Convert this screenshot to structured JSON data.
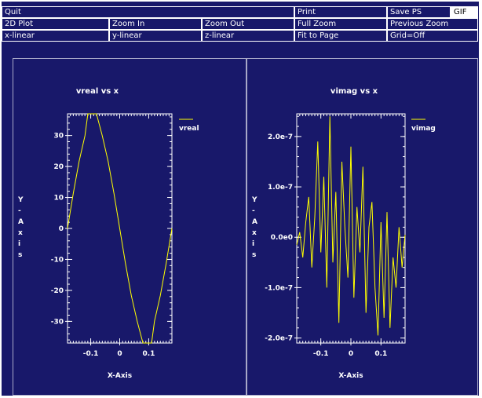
{
  "toolbar": {
    "row1": [
      "Quit",
      "Print",
      "Save PS",
      "GIF"
    ],
    "row2": [
      "2D Plot",
      "Zoom In",
      "Zoom Out",
      "Full Zoom",
      "Previous Zoom"
    ],
    "row3": [
      "x-linear",
      "y-linear",
      "z-linear",
      "Fit to Page",
      "Grid=Off"
    ]
  },
  "colors": {
    "background": "#18186a",
    "text": "#ffffff",
    "trace": "#ffff00"
  },
  "plots": [
    {
      "title": "vreal vs x",
      "legend": "vreal",
      "xlabel": "X-Axis",
      "ylabel": [
        "Y",
        "-",
        "A",
        "x",
        "i",
        "s"
      ],
      "xticks": [
        "-0.1",
        "0",
        "0.1"
      ],
      "yticks": [
        "30",
        "20",
        "10",
        "0",
        "-10",
        "-20",
        "-30"
      ]
    },
    {
      "title": "vimag vs x",
      "legend": "vimag",
      "xlabel": "X-Axis",
      "ylabel": [
        "Y",
        "-",
        "A",
        "x",
        "i",
        "s"
      ],
      "xticks": [
        "-0.1",
        "0",
        "0.1"
      ],
      "yticks": [
        "2.0e-7",
        "1.0e-7",
        "0.0e0",
        "-1.0e-7",
        "-2.0e-7"
      ]
    }
  ],
  "chart_data": [
    {
      "type": "line",
      "title": "vreal vs x",
      "xlabel": "X-Axis",
      "ylabel": "Y-Axis",
      "xlim": [
        -0.18,
        0.18
      ],
      "ylim": [
        -37,
        37
      ],
      "grid": false,
      "legend": "top-right",
      "series": [
        {
          "name": "vreal",
          "x": [
            -0.18,
            -0.16,
            -0.14,
            -0.12,
            -0.11,
            -0.09,
            -0.08,
            -0.06,
            -0.04,
            -0.02,
            0,
            0.02,
            0.04,
            0.06,
            0.08,
            0.09,
            0.11,
            0.12,
            0.14,
            0.16,
            0.18
          ],
          "y": [
            0,
            11.4,
            21.7,
            29.9,
            37,
            37,
            37,
            29.9,
            21.7,
            11.4,
            0,
            -11.4,
            -21.7,
            -29.9,
            -37,
            -37,
            -37,
            -29.9,
            -21.7,
            -11.4,
            0
          ]
        }
      ]
    },
    {
      "type": "line",
      "title": "vimag vs x",
      "xlabel": "X-Axis",
      "ylabel": "Y-Axis",
      "xlim": [
        -0.18,
        0.18
      ],
      "ylim": [
        -2.1e-07,
        2.45e-07
      ],
      "grid": false,
      "legend": "top-right",
      "series": [
        {
          "name": "vimag",
          "x": [
            -0.18,
            -0.17,
            -0.16,
            -0.15,
            -0.14,
            -0.13,
            -0.12,
            -0.11,
            -0.1,
            -0.09,
            -0.08,
            -0.07,
            -0.06,
            -0.05,
            -0.04,
            -0.03,
            -0.02,
            -0.01,
            0,
            0.01,
            0.02,
            0.03,
            0.04,
            0.05,
            0.06,
            0.07,
            0.08,
            0.09,
            0.1,
            0.11,
            0.12,
            0.13,
            0.14,
            0.15,
            0.16,
            0.17,
            0.18
          ],
          "y": [
            -1.5e-08,
            1e-08,
            -4e-08,
            3e-08,
            8e-08,
            -6e-08,
            4e-08,
            1.9e-07,
            -3e-08,
            1.2e-07,
            -1e-07,
            2.4e-07,
            -5e-08,
            9e-08,
            -1.7e-07,
            1.5e-07,
            2e-08,
            -8e-08,
            1.8e-07,
            -1.2e-07,
            6e-08,
            -3e-08,
            1.4e-07,
            -1.5e-07,
            2e-08,
            7e-08,
            -1e-07,
            -1.95e-07,
            3e-08,
            -1.6e-07,
            5e-08,
            -1.8e-07,
            -4e-08,
            -1e-07,
            2e-08,
            -6e-08,
            5e-09
          ]
        }
      ]
    }
  ]
}
